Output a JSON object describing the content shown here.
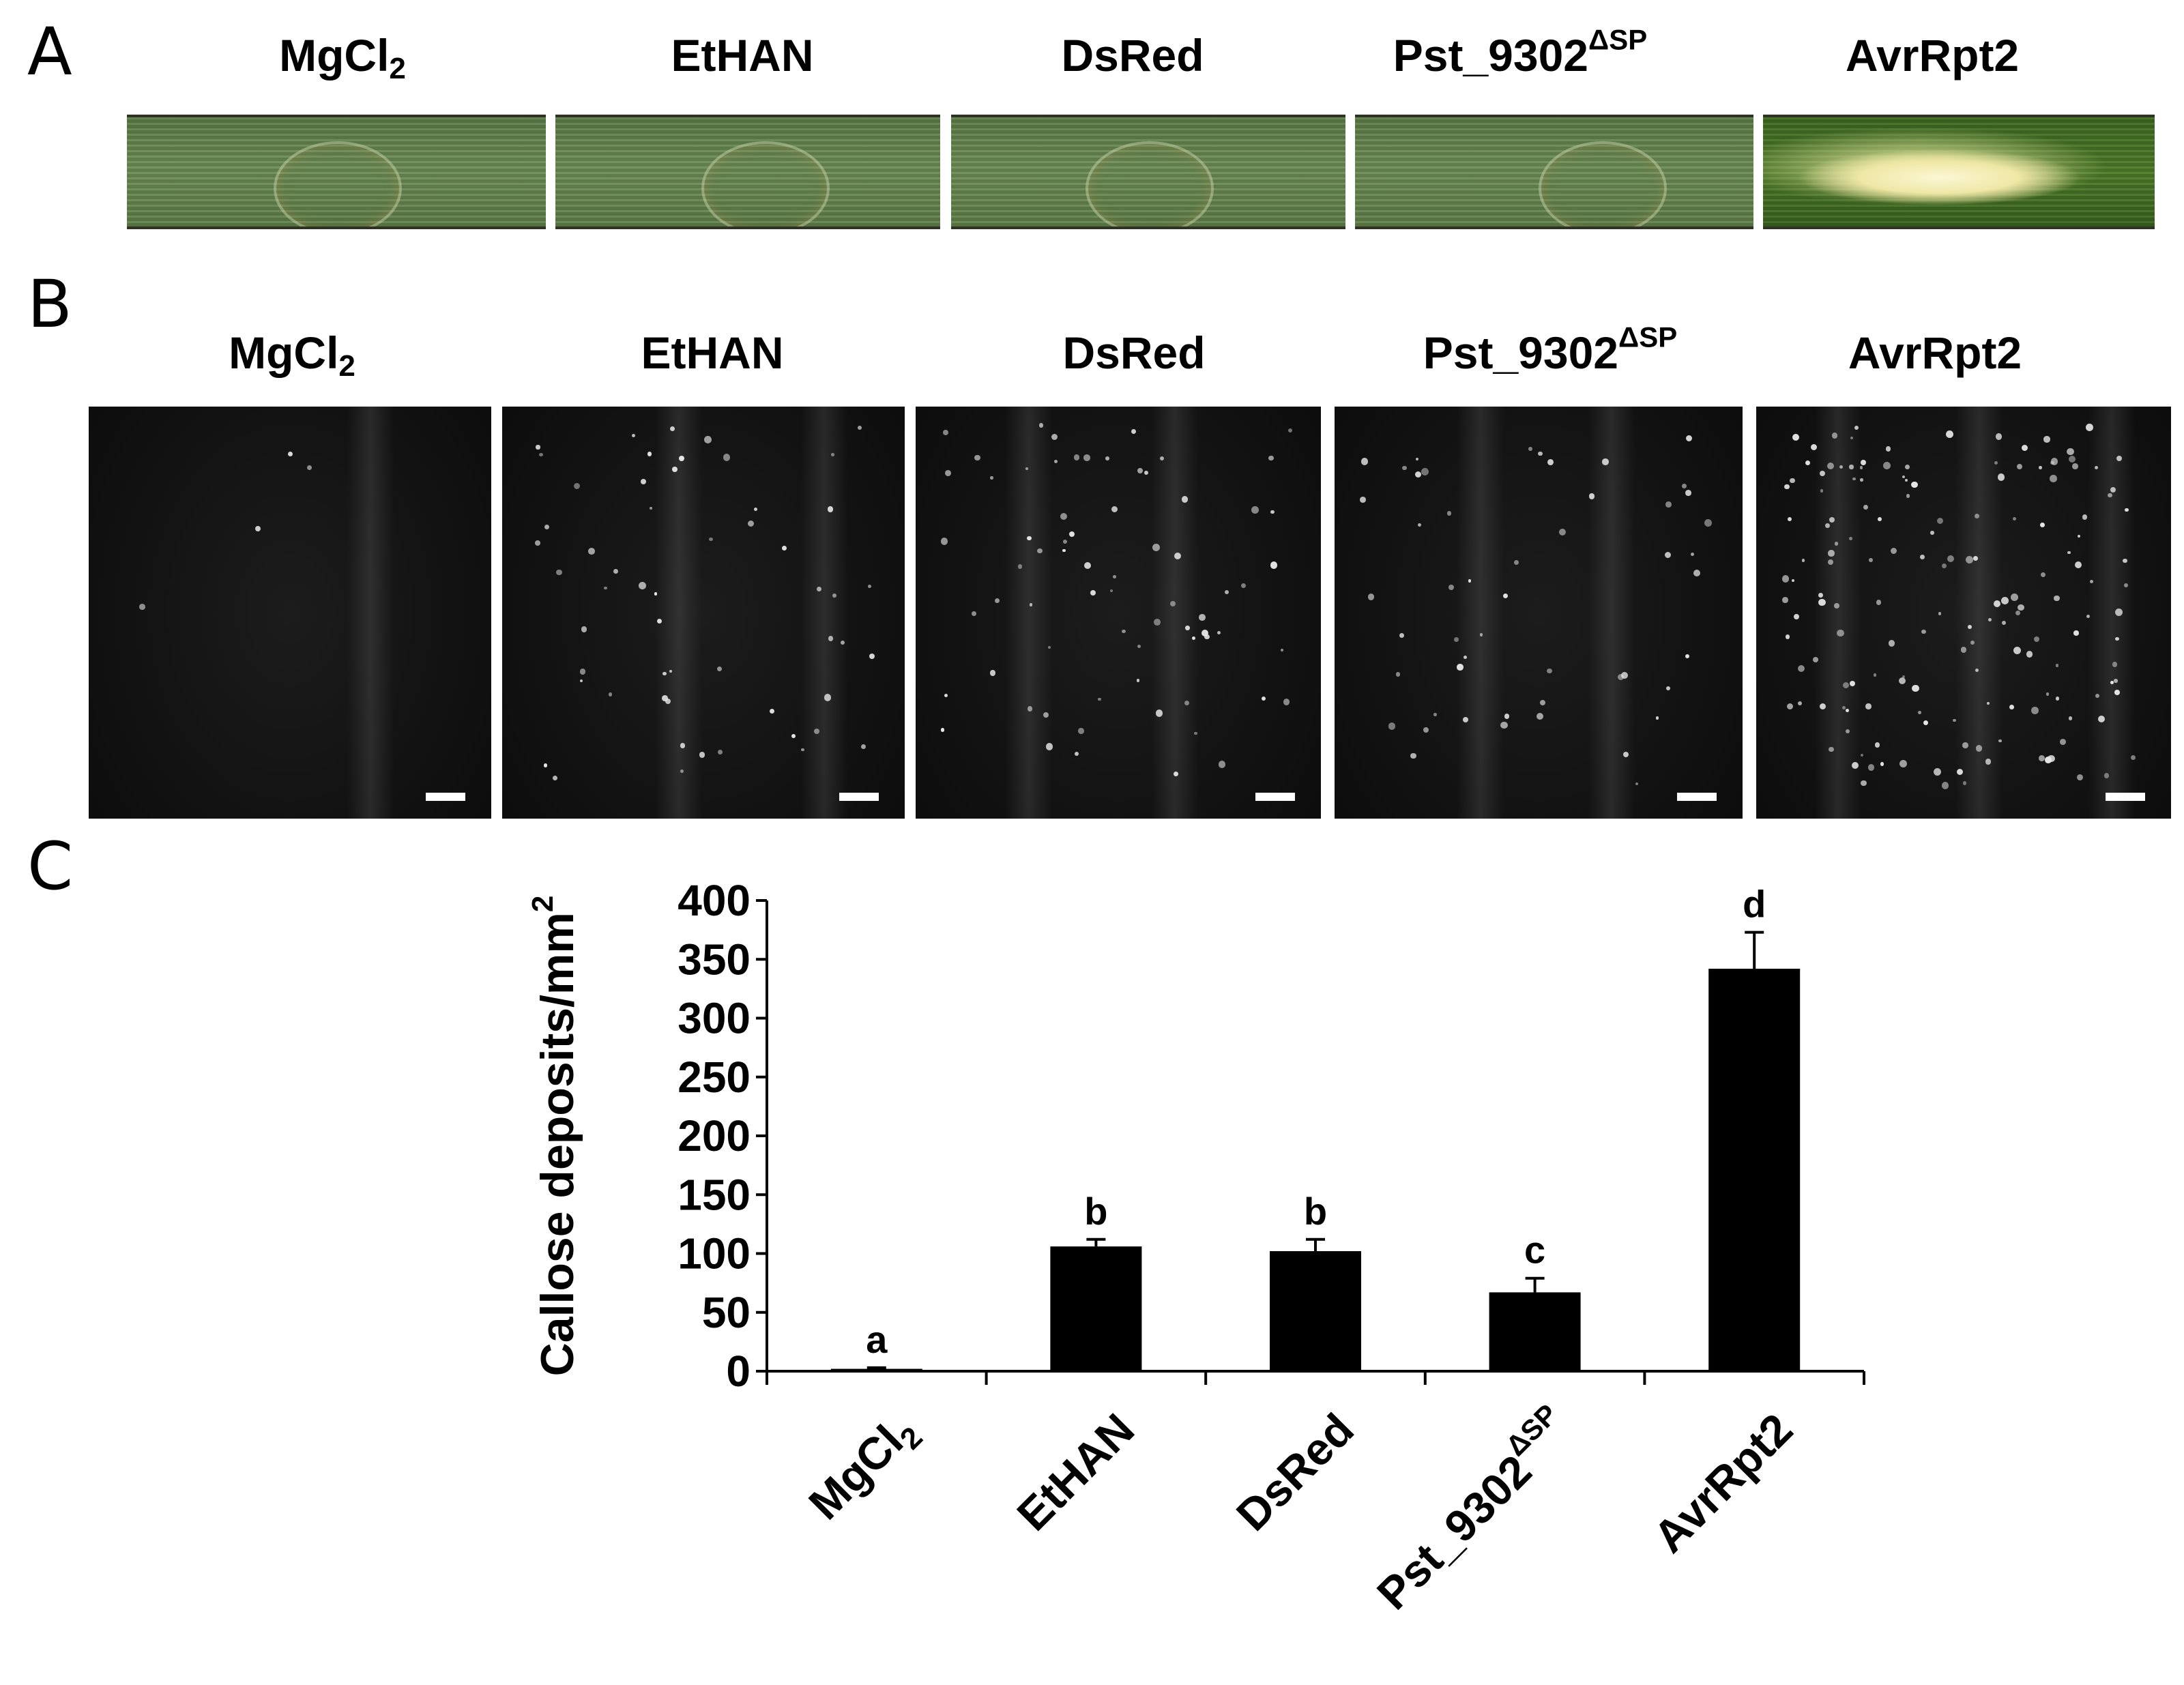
{
  "panels": {
    "a": {
      "letter": "A",
      "labels": [
        {
          "main": "MgCl",
          "sub": "2",
          "sup": ""
        },
        {
          "main": "EtHAN",
          "sub": "",
          "sup": ""
        },
        {
          "main": "DsRed",
          "sub": "",
          "sup": ""
        },
        {
          "main": "Pst_9302",
          "sub": "",
          "sup": "ΔSP"
        },
        {
          "main": "AvrRpt2",
          "sub": "",
          "sup": ""
        }
      ]
    },
    "b": {
      "letter": "B",
      "labels": [
        {
          "main": "MgCl",
          "sub": "2",
          "sup": ""
        },
        {
          "main": "EtHAN",
          "sub": "",
          "sup": ""
        },
        {
          "main": "DsRed",
          "sub": "",
          "sup": ""
        },
        {
          "main": "Pst_9302",
          "sub": "",
          "sup": "ΔSP"
        },
        {
          "main": "AvrRpt2",
          "sub": "",
          "sup": ""
        }
      ]
    },
    "c": {
      "letter": "C"
    }
  },
  "chart_data": {
    "type": "bar",
    "categories": [
      {
        "main": "MgCl",
        "sub": "2",
        "sup": ""
      },
      {
        "main": "EtHAN",
        "sub": "",
        "sup": ""
      },
      {
        "main": "DsRed",
        "sub": "",
        "sup": ""
      },
      {
        "main": "Pst_9302",
        "sub": "",
        "sup": "ΔSP"
      },
      {
        "main": "AvrRpt2",
        "sub": "",
        "sup": ""
      }
    ],
    "values": [
      2,
      106,
      102,
      67,
      342
    ],
    "errors": [
      1,
      6,
      10,
      12,
      31
    ],
    "significance": [
      "a",
      "b",
      "b",
      "c",
      "d"
    ],
    "ylabel": {
      "main": "Callose deposits/mm",
      "sup": "2"
    },
    "ylim": [
      0,
      400
    ],
    "yticks": [
      "0",
      "50",
      "100",
      "150",
      "200",
      "250",
      "300",
      "350",
      "400"
    ],
    "bar_color": "#000000",
    "grid": false,
    "legend": "none"
  }
}
